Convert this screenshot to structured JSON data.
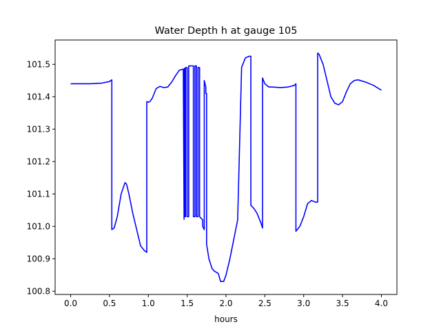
{
  "chart_data": {
    "type": "line",
    "title": "Water Depth h at gauge 105",
    "xlabel": "hours",
    "ylabel": "",
    "xlim": [
      -0.2,
      4.2
    ],
    "ylim": [
      100.79,
      101.575
    ],
    "xticks": [
      0.0,
      0.5,
      1.0,
      1.5,
      2.0,
      2.5,
      3.0,
      3.5,
      4.0
    ],
    "xtick_labels": [
      "0.0",
      "0.5",
      "1.0",
      "1.5",
      "2.0",
      "2.5",
      "3.0",
      "3.5",
      "4.0"
    ],
    "yticks": [
      100.8,
      100.9,
      101.0,
      101.1,
      101.2,
      101.3,
      101.4,
      101.5
    ],
    "ytick_labels": [
      "100.8",
      "100.9",
      "101.0",
      "101.1",
      "101.2",
      "101.3",
      "101.4",
      "101.5"
    ],
    "grid": false,
    "legend": "none",
    "series": [
      {
        "color": "#0000ff",
        "x": [
          0.0,
          0.25,
          0.4,
          0.5,
          0.53,
          0.53,
          0.56,
          0.6,
          0.65,
          0.7,
          0.72,
          0.75,
          0.8,
          0.85,
          0.9,
          0.95,
          0.98,
          0.98,
          1.0,
          1.02,
          1.05,
          1.1,
          1.15,
          1.2,
          1.25,
          1.3,
          1.35,
          1.4,
          1.45,
          1.46,
          1.46,
          1.47,
          1.47,
          1.48,
          1.48,
          1.5,
          1.5,
          1.52,
          1.52,
          1.58,
          1.58,
          1.6,
          1.6,
          1.62,
          1.62,
          1.64,
          1.64,
          1.66,
          1.66,
          1.7,
          1.7,
          1.72,
          1.72,
          1.74,
          1.74,
          1.75,
          1.75,
          1.78,
          1.82,
          1.85,
          1.9,
          1.93,
          1.97,
          2.0,
          2.05,
          2.1,
          2.15,
          2.2,
          2.2,
          2.25,
          2.3,
          2.32,
          2.32,
          2.36,
          2.4,
          2.45,
          2.47,
          2.47,
          2.5,
          2.55,
          2.6,
          2.7,
          2.8,
          2.88,
          2.9,
          2.9,
          2.95,
          3.0,
          3.05,
          3.1,
          3.15,
          3.18,
          3.18,
          3.2,
          3.25,
          3.3,
          3.35,
          3.4,
          3.45,
          3.5,
          3.55,
          3.6,
          3.65,
          3.7,
          3.8,
          3.9,
          4.0
        ],
        "y": [
          101.44,
          101.44,
          101.442,
          101.447,
          101.452,
          100.99,
          100.995,
          101.03,
          101.1,
          101.135,
          101.13,
          101.1,
          101.04,
          100.99,
          100.94,
          100.925,
          100.92,
          101.385,
          101.383,
          101.385,
          101.395,
          101.425,
          101.432,
          101.428,
          101.43,
          101.445,
          101.465,
          101.482,
          101.485,
          101.022,
          101.485,
          101.488,
          101.03,
          101.03,
          101.49,
          101.49,
          101.03,
          101.03,
          101.495,
          101.495,
          101.03,
          101.03,
          101.495,
          101.495,
          101.03,
          101.03,
          101.49,
          101.49,
          101.03,
          101.02,
          101.0,
          100.99,
          101.45,
          101.43,
          101.41,
          101.41,
          100.945,
          100.9,
          100.87,
          100.862,
          100.855,
          100.83,
          100.83,
          100.85,
          100.9,
          100.96,
          101.02,
          101.485,
          101.49,
          101.52,
          101.525,
          101.525,
          101.065,
          101.055,
          101.04,
          101.01,
          100.995,
          101.458,
          101.44,
          101.43,
          101.43,
          101.428,
          101.43,
          101.435,
          101.44,
          100.985,
          101.0,
          101.03,
          101.07,
          101.08,
          101.075,
          101.075,
          101.535,
          101.53,
          101.5,
          101.45,
          101.4,
          101.38,
          101.375,
          101.385,
          101.415,
          101.44,
          101.45,
          101.452,
          101.445,
          101.435,
          101.42
        ]
      }
    ]
  }
}
